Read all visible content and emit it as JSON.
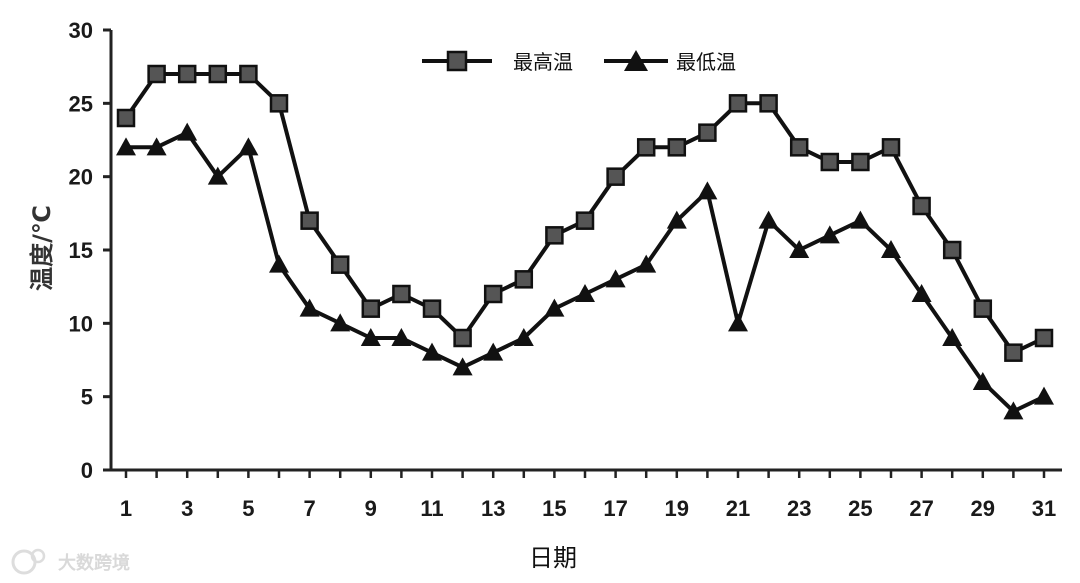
{
  "chart_data": {
    "type": "line",
    "title": "",
    "xlabel": "日期",
    "ylabel": "温度/℃",
    "x": [
      1,
      2,
      3,
      4,
      5,
      6,
      7,
      8,
      9,
      10,
      11,
      12,
      13,
      14,
      15,
      16,
      17,
      18,
      19,
      20,
      21,
      22,
      23,
      24,
      25,
      26,
      27,
      28,
      29,
      30,
      31
    ],
    "x_tick_labels": [
      "1",
      "3",
      "5",
      "7",
      "9",
      "11",
      "13",
      "15",
      "17",
      "19",
      "21",
      "23",
      "25",
      "27",
      "29",
      "31"
    ],
    "y_tick_labels": [
      "0",
      "5",
      "10",
      "15",
      "20",
      "25",
      "30"
    ],
    "ylim": [
      0,
      30
    ],
    "xlim": [
      1,
      31
    ],
    "grid": false,
    "legend_position": "top-center",
    "series": [
      {
        "name": "最高温",
        "marker": "square",
        "color": "#111111",
        "values": [
          24,
          27,
          27,
          27,
          27,
          25,
          17,
          14,
          11,
          12,
          11,
          9,
          12,
          13,
          16,
          17,
          20,
          22,
          22,
          23,
          25,
          25,
          22,
          21,
          21,
          22,
          18,
          15,
          11,
          8,
          9
        ]
      },
      {
        "name": "最低温",
        "marker": "triangle",
        "color": "#111111",
        "values": [
          22,
          22,
          23,
          20,
          22,
          14,
          11,
          10,
          9,
          9,
          8,
          7,
          8,
          9,
          11,
          12,
          13,
          14,
          17,
          19,
          10,
          17,
          15,
          16,
          17,
          15,
          12,
          9,
          6,
          4,
          5
        ]
      }
    ]
  },
  "watermark": {
    "text": "大数跨境"
  }
}
